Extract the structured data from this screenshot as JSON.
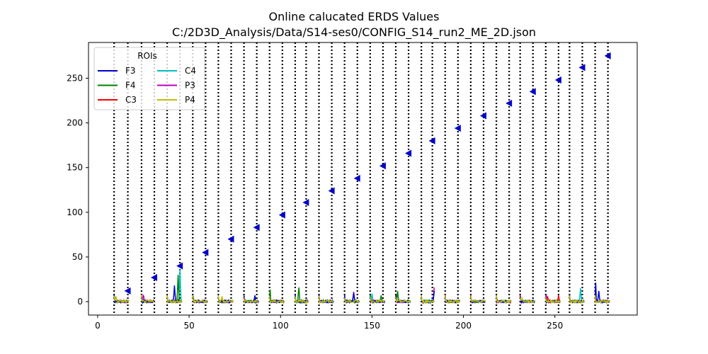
{
  "chart_data": {
    "type": "line",
    "title": "Online calucated ERDS Values",
    "subtitle": "C:/2D3D_Analysis/Data/S14-ses0/CONFIG_S14_run2_ME_2D.json",
    "xlim": [
      -5,
      295
    ],
    "ylim": [
      -15,
      290
    ],
    "x_ticks": [
      0,
      50,
      100,
      150,
      200,
      250
    ],
    "y_ticks": [
      0,
      50,
      100,
      150,
      200,
      250
    ],
    "grid": false,
    "legend": {
      "title": "ROIs",
      "placement": "top-left",
      "entries": [
        {
          "name": "F3",
          "color": "#0000cc"
        },
        {
          "name": "F4",
          "color": "#008000"
        },
        {
          "name": "C3",
          "color": "#ff0000"
        },
        {
          "name": "C4",
          "color": "#00bfbf"
        },
        {
          "name": "P3",
          "color": "#bf00bf"
        },
        {
          "name": "P4",
          "color": "#bfbf00"
        }
      ]
    },
    "vlines_x": [
      9,
      16.5,
      24,
      31,
      38,
      45,
      52,
      59,
      66,
      73,
      80,
      87,
      94,
      101,
      108,
      114,
      121,
      128,
      135,
      142,
      149,
      156,
      163,
      170,
      177,
      183,
      190,
      197,
      204,
      211,
      218,
      225,
      231,
      238,
      245,
      252,
      258,
      265,
      272,
      279
    ],
    "markers": {
      "color": "#0000cc",
      "shape": "left-triangle",
      "points": [
        [
          16.5,
          12
        ],
        [
          31,
          27
        ],
        [
          45,
          40
        ],
        [
          59,
          55
        ],
        [
          73,
          70
        ],
        [
          87,
          83
        ],
        [
          101,
          97
        ],
        [
          114,
          111
        ],
        [
          128,
          124
        ],
        [
          142,
          138
        ],
        [
          156,
          152
        ],
        [
          170,
          166
        ],
        [
          183,
          180
        ],
        [
          197,
          194
        ],
        [
          211,
          208
        ],
        [
          225,
          222
        ],
        [
          238,
          235
        ],
        [
          252,
          248
        ],
        [
          265,
          262
        ],
        [
          279,
          275
        ]
      ]
    },
    "trial_windows": [
      [
        9,
        17
      ],
      [
        24,
        31
      ],
      [
        38,
        46
      ],
      [
        52,
        60
      ],
      [
        66,
        74
      ],
      [
        80,
        88
      ],
      [
        94,
        102
      ],
      [
        108,
        115
      ],
      [
        121,
        129
      ],
      [
        135,
        143
      ],
      [
        149,
        157
      ],
      [
        163,
        171
      ],
      [
        177,
        184
      ],
      [
        190,
        198
      ],
      [
        204,
        212
      ],
      [
        218,
        226
      ],
      [
        231,
        239
      ],
      [
        245,
        253
      ],
      [
        258,
        266
      ],
      [
        272,
        280
      ]
    ],
    "series_peaks": [
      {
        "series": "F3",
        "peaks": [
          [
            42,
            18
          ],
          [
            86,
            7
          ],
          [
            140,
            10
          ],
          [
            184,
            12
          ],
          [
            272,
            48
          ],
          [
            274,
            12
          ]
        ]
      },
      {
        "series": "F4",
        "peaks": [
          [
            44,
            30
          ],
          [
            52,
            12
          ],
          [
            94,
            30
          ],
          [
            110,
            17
          ],
          [
            155,
            7
          ],
          [
            164,
            12
          ],
          [
            272,
            16
          ]
        ]
      },
      {
        "series": "C3",
        "peaks": [
          [
            184,
            11
          ],
          [
            252,
            7
          ],
          [
            246,
            6
          ]
        ]
      },
      {
        "series": "C4",
        "peaks": [
          [
            45,
            36
          ],
          [
            150,
            9
          ],
          [
            264,
            15
          ],
          [
            272,
            10
          ]
        ]
      },
      {
        "series": "P3",
        "peaks": [
          [
            25,
            9
          ],
          [
            80,
            8
          ],
          [
            140,
            11
          ],
          [
            184,
            16
          ],
          [
            245,
            16
          ]
        ]
      },
      {
        "series": "P4",
        "peaks": [
          [
            10,
            6
          ],
          [
            68,
            6
          ],
          [
            120,
            5
          ],
          [
            200,
            4
          ],
          [
            232,
            4
          ]
        ]
      }
    ]
  }
}
